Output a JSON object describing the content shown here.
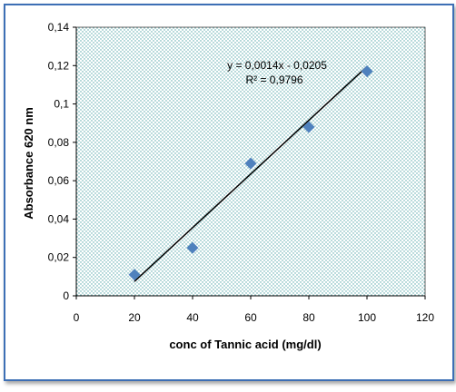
{
  "chart_data": {
    "type": "scatter",
    "xlabel": "conc of Tannic acid (mg/dl)",
    "ylabel": "Absorbance 620 nm",
    "xlim": [
      0,
      120
    ],
    "ylim": [
      0,
      0.14
    ],
    "x_ticks": [
      "0",
      "20",
      "40",
      "60",
      "80",
      "100",
      "120"
    ],
    "y_ticks": [
      "0",
      "0,02",
      "0,04",
      "0,06",
      "0,08",
      "0,1",
      "0,12",
      "0,14"
    ],
    "x_tick_values": [
      0,
      20,
      40,
      60,
      80,
      100,
      120
    ],
    "y_tick_values": [
      0,
      0.02,
      0.04,
      0.06,
      0.08,
      0.1,
      0.12,
      0.14
    ],
    "points": [
      {
        "x": 20,
        "y": 0.011
      },
      {
        "x": 40,
        "y": 0.025
      },
      {
        "x": 60,
        "y": 0.069
      },
      {
        "x": 80,
        "y": 0.088
      },
      {
        "x": 100,
        "y": 0.117
      }
    ],
    "trendline": {
      "slope": 0.0014,
      "intercept": -0.0205,
      "x_range": [
        20,
        100
      ]
    },
    "equation": "y = 0,0014x - 0,0205",
    "r_squared": "R² = 0,9796",
    "marker_color": "#4f81bd",
    "plot_pattern_color": "#4fa3a6",
    "frame_color": "#3d6fb5",
    "grid": false
  }
}
